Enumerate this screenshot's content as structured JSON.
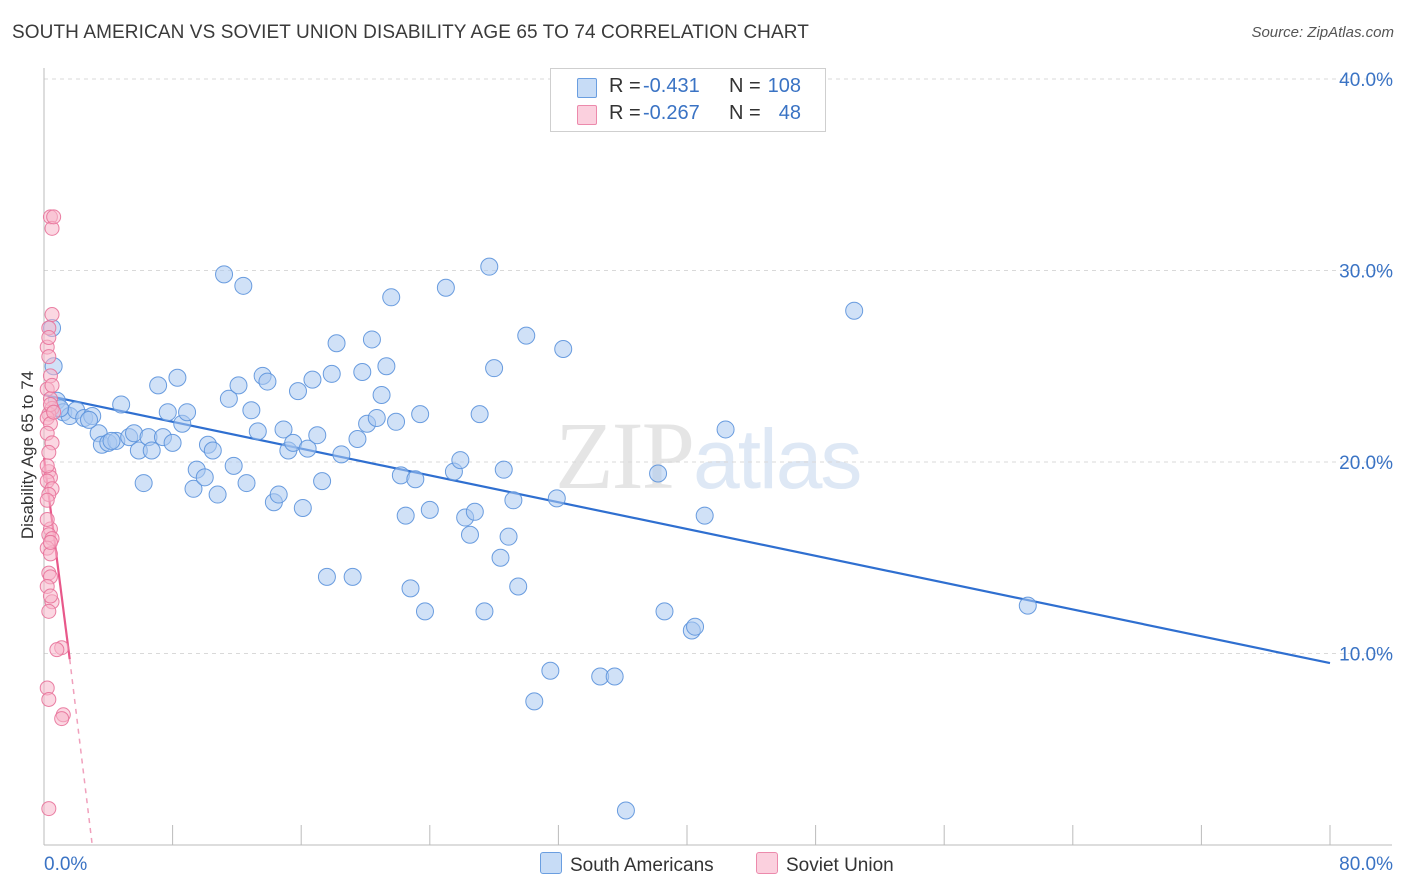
{
  "header": {
    "title": "SOUTH AMERICAN VS SOVIET UNION DISABILITY AGE 65 TO 74 CORRELATION CHART",
    "source": "Source: ZipAtlas.com"
  },
  "legend": {
    "rows": [
      {
        "r_label": "R =",
        "r_value": "-0.431",
        "n_label": "N =",
        "n_value": "108",
        "color": "#a9c8f0"
      },
      {
        "r_label": "R =",
        "r_value": "-0.267",
        "n_label": "N =",
        "n_value": "48",
        "color": "#f7b7cb"
      }
    ]
  },
  "bottom_legend": {
    "items": [
      {
        "label": "South Americans",
        "color": "#a9c8f0"
      },
      {
        "label": "Soviet Union",
        "color": "#f7b7cb"
      }
    ]
  },
  "watermark": {
    "zip": "ZIP",
    "atlas": "atlas"
  },
  "chart_data": {
    "type": "scatter",
    "title": "SOUTH AMERICAN VS SOVIET UNION DISABILITY AGE 65 TO 74 CORRELATION CHART",
    "ylabel": "Disability Age 65 to 74",
    "xlabel": "",
    "xlim": [
      0,
      80
    ],
    "ylim": [
      0,
      40
    ],
    "x_tick_labels": [
      "0.0%",
      "80.0%"
    ],
    "y_tick_labels": [
      "10.0%",
      "20.0%",
      "30.0%",
      "40.0%"
    ],
    "y_tick_values": [
      10,
      20,
      30,
      40
    ],
    "grid": "horizontal dashed",
    "legend_position": "top-center",
    "series": [
      {
        "name": "South Americans",
        "color": "#5b92dc",
        "fill": "#a9c8f0",
        "trend": {
          "x": [
            0,
            80
          ],
          "y": [
            23.5,
            9.5
          ]
        },
        "points": [
          [
            0.5,
            27.0
          ],
          [
            0.6,
            25.0
          ],
          [
            0.8,
            23.2
          ],
          [
            1.2,
            22.6
          ],
          [
            1.6,
            22.4
          ],
          [
            2.0,
            22.7
          ],
          [
            2.5,
            22.3
          ],
          [
            3.0,
            22.4
          ],
          [
            3.4,
            21.5
          ],
          [
            3.6,
            20.9
          ],
          [
            4.0,
            21.0
          ],
          [
            4.5,
            21.1
          ],
          [
            4.8,
            23.0
          ],
          [
            5.3,
            21.3
          ],
          [
            5.6,
            21.5
          ],
          [
            5.9,
            20.6
          ],
          [
            6.2,
            18.9
          ],
          [
            6.5,
            21.3
          ],
          [
            6.7,
            20.6
          ],
          [
            7.1,
            24.0
          ],
          [
            7.4,
            21.3
          ],
          [
            7.7,
            22.6
          ],
          [
            8.0,
            21.0
          ],
          [
            8.3,
            24.4
          ],
          [
            8.6,
            22.0
          ],
          [
            8.9,
            22.6
          ],
          [
            9.3,
            18.6
          ],
          [
            9.5,
            19.6
          ],
          [
            10.0,
            19.2
          ],
          [
            10.2,
            20.9
          ],
          [
            10.5,
            20.6
          ],
          [
            10.8,
            18.3
          ],
          [
            11.2,
            29.8
          ],
          [
            11.5,
            23.3
          ],
          [
            11.8,
            19.8
          ],
          [
            12.1,
            24.0
          ],
          [
            12.4,
            29.2
          ],
          [
            12.6,
            18.9
          ],
          [
            12.9,
            22.7
          ],
          [
            13.3,
            21.6
          ],
          [
            13.6,
            24.5
          ],
          [
            13.9,
            24.2
          ],
          [
            14.3,
            17.9
          ],
          [
            14.6,
            18.3
          ],
          [
            14.9,
            21.7
          ],
          [
            15.2,
            20.6
          ],
          [
            15.5,
            21.0
          ],
          [
            15.8,
            23.7
          ],
          [
            16.1,
            17.6
          ],
          [
            16.4,
            20.7
          ],
          [
            16.7,
            24.3
          ],
          [
            17.0,
            21.4
          ],
          [
            17.3,
            19.0
          ],
          [
            17.6,
            14.0
          ],
          [
            17.9,
            24.6
          ],
          [
            18.2,
            26.2
          ],
          [
            18.5,
            20.4
          ],
          [
            19.2,
            14.0
          ],
          [
            19.5,
            21.2
          ],
          [
            19.8,
            24.7
          ],
          [
            20.1,
            22.0
          ],
          [
            20.4,
            26.4
          ],
          [
            20.7,
            22.3
          ],
          [
            21.0,
            23.5
          ],
          [
            21.3,
            25.0
          ],
          [
            21.6,
            28.6
          ],
          [
            21.9,
            22.1
          ],
          [
            22.2,
            19.3
          ],
          [
            22.5,
            17.2
          ],
          [
            22.8,
            13.4
          ],
          [
            23.1,
            19.1
          ],
          [
            23.4,
            22.5
          ],
          [
            23.7,
            12.2
          ],
          [
            24.0,
            17.5
          ],
          [
            25.0,
            29.1
          ],
          [
            25.5,
            19.5
          ],
          [
            25.9,
            20.1
          ],
          [
            26.2,
            17.1
          ],
          [
            26.5,
            16.2
          ],
          [
            26.8,
            17.4
          ],
          [
            27.1,
            22.5
          ],
          [
            27.4,
            12.2
          ],
          [
            27.7,
            30.2
          ],
          [
            28.0,
            24.9
          ],
          [
            28.4,
            15.0
          ],
          [
            28.6,
            19.6
          ],
          [
            28.9,
            16.1
          ],
          [
            29.2,
            18.0
          ],
          [
            29.5,
            13.5
          ],
          [
            30.0,
            26.6
          ],
          [
            30.5,
            7.5
          ],
          [
            31.5,
            9.1
          ],
          [
            31.9,
            18.1
          ],
          [
            32.3,
            25.9
          ],
          [
            34.6,
            8.8
          ],
          [
            35.5,
            8.8
          ],
          [
            36.2,
            1.8
          ],
          [
            38.2,
            19.4
          ],
          [
            38.6,
            12.2
          ],
          [
            40.3,
            11.2
          ],
          [
            40.5,
            11.4
          ],
          [
            41.1,
            17.2
          ],
          [
            42.4,
            21.7
          ],
          [
            50.4,
            27.9
          ],
          [
            61.2,
            12.5
          ],
          [
            1.0,
            22.8
          ],
          [
            2.8,
            22.2
          ],
          [
            4.2,
            21.1
          ]
        ]
      },
      {
        "name": "Soviet Union",
        "color": "#e8729a",
        "fill": "#f7b7cb",
        "trend": {
          "x": [
            0,
            1.6
          ],
          "y": [
            20.2,
            9.7
          ]
        },
        "trend_dashed": {
          "x": [
            1.6,
            3.0
          ],
          "y": [
            9.7,
            0
          ]
        },
        "points": [
          [
            0.4,
            32.8
          ],
          [
            0.5,
            32.2
          ],
          [
            0.6,
            32.8
          ],
          [
            0.5,
            27.7
          ],
          [
            0.3,
            27.0
          ],
          [
            0.2,
            26.0
          ],
          [
            0.3,
            25.5
          ],
          [
            0.4,
            24.5
          ],
          [
            0.2,
            23.8
          ],
          [
            0.4,
            23.3
          ],
          [
            0.5,
            22.8
          ],
          [
            0.3,
            22.5
          ],
          [
            0.2,
            22.3
          ],
          [
            0.4,
            22.0
          ],
          [
            0.2,
            21.5
          ],
          [
            0.5,
            21.0
          ],
          [
            0.3,
            19.5
          ],
          [
            0.4,
            19.2
          ],
          [
            0.2,
            19.0
          ],
          [
            0.5,
            18.6
          ],
          [
            0.3,
            18.3
          ],
          [
            0.2,
            18.0
          ],
          [
            0.4,
            16.5
          ],
          [
            0.3,
            16.2
          ],
          [
            0.5,
            16.0
          ],
          [
            0.2,
            15.5
          ],
          [
            0.4,
            15.2
          ],
          [
            0.3,
            14.2
          ],
          [
            0.4,
            14.0
          ],
          [
            0.2,
            13.5
          ],
          [
            0.5,
            12.7
          ],
          [
            0.3,
            12.2
          ],
          [
            1.1,
            10.3
          ],
          [
            0.8,
            10.2
          ],
          [
            0.2,
            8.2
          ],
          [
            0.3,
            7.6
          ],
          [
            1.2,
            6.8
          ],
          [
            1.1,
            6.6
          ],
          [
            0.3,
            1.9
          ],
          [
            0.4,
            23.0
          ],
          [
            0.3,
            20.5
          ],
          [
            0.2,
            17.0
          ],
          [
            0.4,
            15.8
          ],
          [
            0.5,
            24.0
          ],
          [
            0.3,
            26.5
          ],
          [
            0.2,
            19.8
          ],
          [
            0.6,
            22.6
          ],
          [
            0.4,
            13.0
          ]
        ]
      }
    ]
  }
}
